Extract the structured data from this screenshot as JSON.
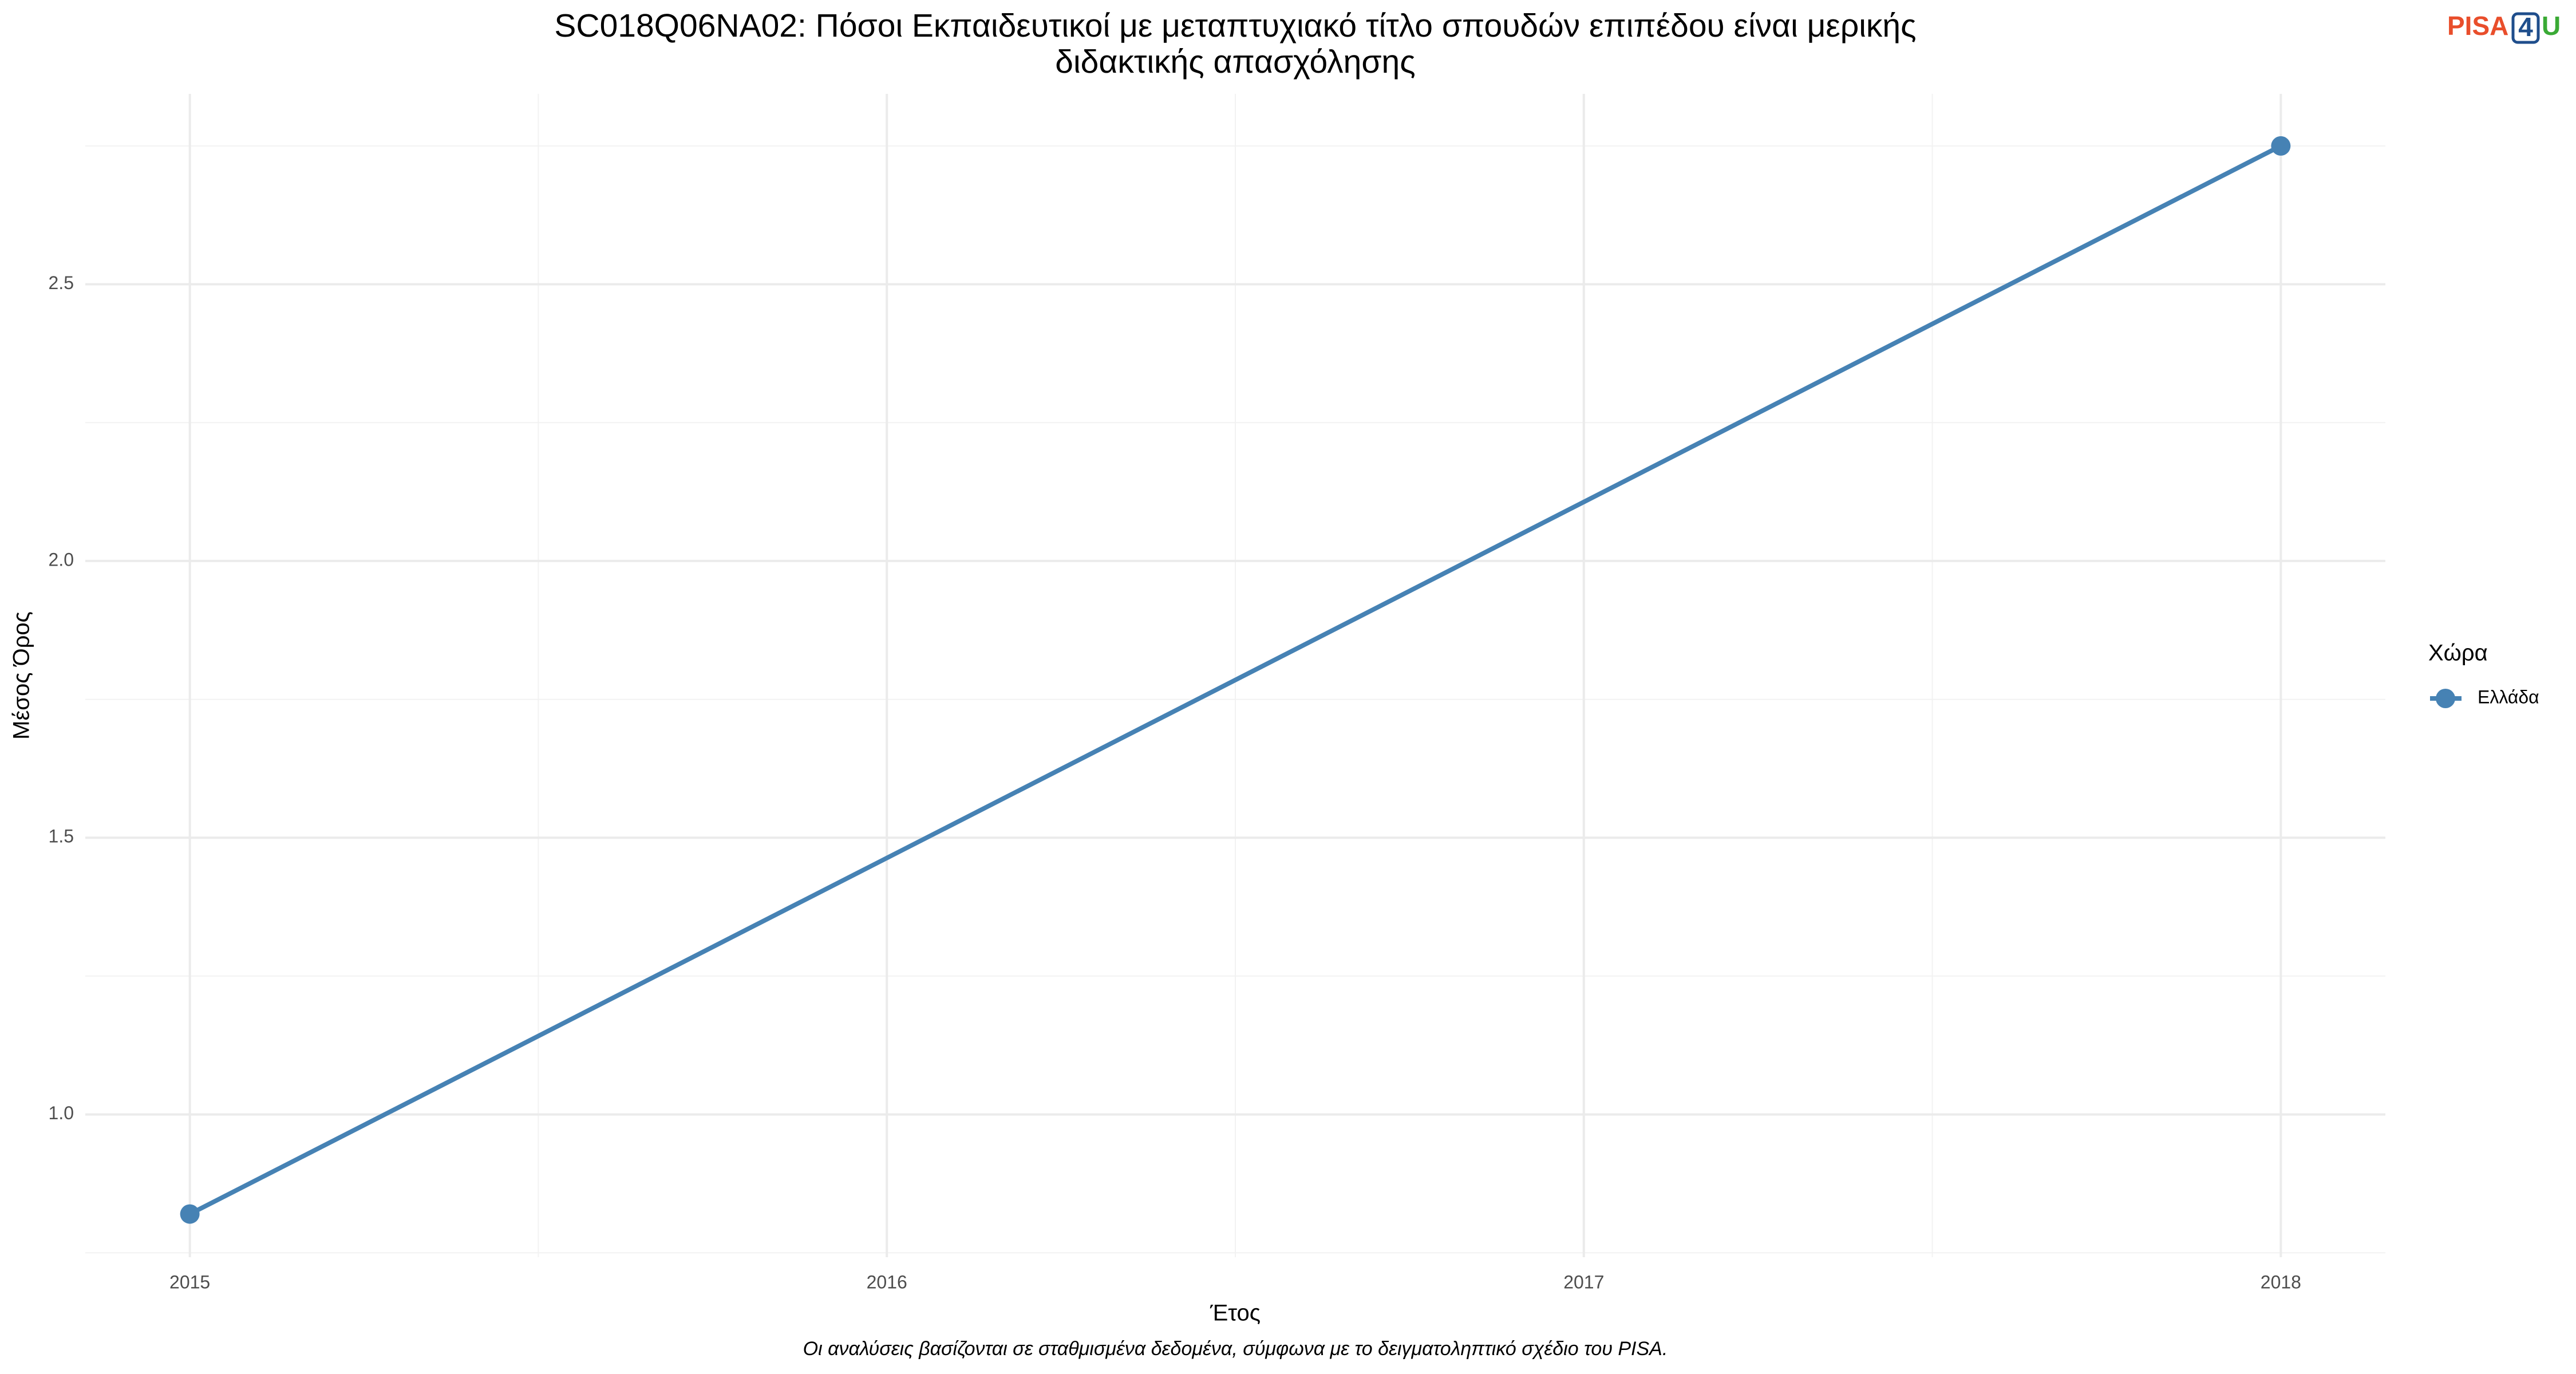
{
  "chart_data": {
    "type": "line",
    "title": [
      "SC018Q06NA02: Πόσοι Εκπαιδευτικοί με μεταπτυχιακό τίτλο σπουδών επιπέδου είναι μερικής",
      "διδακτικής απασχόλησης"
    ],
    "x_label": "Έτος",
    "y_label": "Μέσος Όρος",
    "caption": "Οι αναλύσεις βασίζονται σε σταθμισμένα δεδομένα, σύμφωνα με το δειγματοληπτικό σχέδιο του PISA.",
    "legend_title": "Χώρα",
    "legend_position": "right",
    "logo": [
      "PISA",
      "4",
      "U"
    ],
    "x": [
      2015,
      2018
    ],
    "series": [
      {
        "name": "Ελλάδα",
        "color": "#4682b4",
        "values": [
          0.82,
          2.75
        ]
      }
    ],
    "xlim": [
      2014.85,
      2018.15
    ],
    "xticks": [
      2015,
      2016,
      2017,
      2018
    ],
    "ylim": [
      0.742,
      2.844
    ],
    "yticks": [
      {
        "value": 1,
        "label": "1.0"
      },
      1.5,
      {
        "value": 2,
        "label": "2.0"
      },
      2.5
    ],
    "grid": true
  }
}
